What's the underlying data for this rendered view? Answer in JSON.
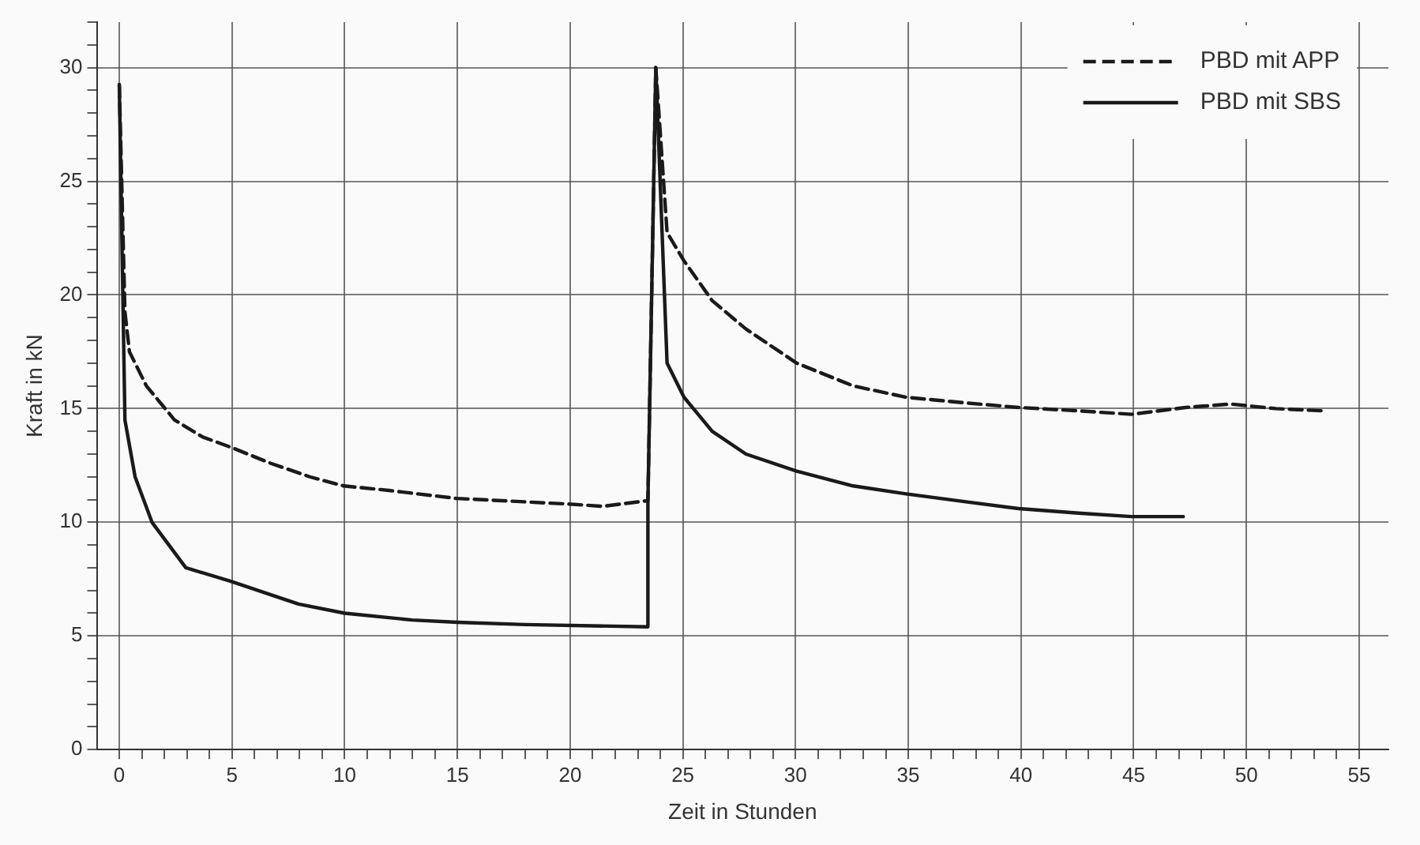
{
  "chart_data": {
    "type": "line",
    "xlabel": "Zeit in Stunden",
    "ylabel": "Kraft in kN",
    "xlim": [
      -1,
      56.3
    ],
    "ylim": [
      0,
      32
    ],
    "xticks": [
      0,
      {
        "value": 1,
        "label": null
      },
      {
        "value": 2,
        "label": null
      },
      {
        "value": 3,
        "label": null
      },
      {
        "value": 4,
        "label": null
      },
      5,
      {
        "value": 6,
        "label": null
      },
      {
        "value": 7,
        "label": null
      },
      {
        "value": 8,
        "label": null
      },
      {
        "value": 9,
        "label": null
      },
      10,
      {
        "value": 11,
        "label": null
      },
      {
        "value": 12,
        "label": null
      },
      {
        "value": 13,
        "label": null
      },
      {
        "value": 14,
        "label": null
      },
      15,
      {
        "value": 16,
        "label": null
      },
      {
        "value": 17,
        "label": null
      },
      {
        "value": 18,
        "label": null
      },
      {
        "value": 19,
        "label": null
      },
      20,
      {
        "value": 21,
        "label": null
      },
      {
        "value": 22,
        "label": null
      },
      {
        "value": 23,
        "label": null
      },
      {
        "value": 24,
        "label": null
      },
      25,
      {
        "value": 26,
        "label": null
      },
      {
        "value": 27,
        "label": null
      },
      {
        "value": 28,
        "label": null
      },
      {
        "value": 29,
        "label": null
      },
      30,
      {
        "value": 31,
        "label": null
      },
      {
        "value": 32,
        "label": null
      },
      {
        "value": 33,
        "label": null
      },
      {
        "value": 34,
        "label": null
      },
      35,
      {
        "value": 36,
        "label": null
      },
      {
        "value": 37,
        "label": null
      },
      {
        "value": 38,
        "label": null
      },
      {
        "value": 39,
        "label": null
      },
      40,
      {
        "value": 41,
        "label": null
      },
      {
        "value": 42,
        "label": null
      },
      {
        "value": 43,
        "label": null
      },
      {
        "value": 44,
        "label": null
      },
      45,
      {
        "value": 46,
        "label": null
      },
      {
        "value": 47,
        "label": null
      },
      {
        "value": 48,
        "label": null
      },
      {
        "value": 49,
        "label": null
      },
      50,
      {
        "value": 51,
        "label": null
      },
      {
        "value": 52,
        "label": null
      },
      {
        "value": 53,
        "label": null
      },
      {
        "value": 54,
        "label": null
      },
      55
    ],
    "yticks": [
      0,
      {
        "value": 1,
        "label": null
      },
      {
        "value": 2,
        "label": null
      },
      {
        "value": 3,
        "label": null
      },
      {
        "value": 4,
        "label": null
      },
      5,
      {
        "value": 6,
        "label": null
      },
      {
        "value": 7,
        "label": null
      },
      {
        "value": 8,
        "label": null
      },
      {
        "value": 9,
        "label": null
      },
      10,
      {
        "value": 11,
        "label": null
      },
      {
        "value": 12,
        "label": null
      },
      {
        "value": 13,
        "label": null
      },
      {
        "value": 14,
        "label": null
      },
      15,
      {
        "value": 16,
        "label": null
      },
      {
        "value": 17,
        "label": null
      },
      {
        "value": 18,
        "label": null
      },
      {
        "value": 19,
        "label": null
      },
      20,
      {
        "value": 21,
        "label": null
      },
      {
        "value": 22,
        "label": null
      },
      {
        "value": 23,
        "label": null
      },
      {
        "value": 24,
        "label": null
      },
      25,
      {
        "value": 26,
        "label": null
      },
      {
        "value": 27,
        "label": null
      },
      {
        "value": 28,
        "label": null
      },
      {
        "value": 29,
        "label": null
      },
      30,
      {
        "value": 31,
        "label": null
      },
      {
        "value": 32,
        "label": null
      }
    ],
    "grid": true,
    "legend": "top right",
    "marker": "none",
    "series": [
      {
        "name": "PBD mit APP",
        "color": "#1a1a1a",
        "line_style": "dashed",
        "x": [
          0,
          0.25,
          0.45,
          1.2,
          2.45,
          3.7,
          4.95,
          6.7,
          8.45,
          9.95,
          11.95,
          14.95,
          17.95,
          19.95,
          21.45,
          23.45,
          23.8,
          24.3,
          25.05,
          26.3,
          27.8,
          30.05,
          32.55,
          34.9,
          37.55,
          39.9,
          42.55,
          44.9,
          47.3,
          49.3,
          51.3,
          53.4
        ],
        "values": [
          29.25,
          19.25,
          17.5,
          16,
          14.5,
          13.75,
          13.3,
          12.6,
          12,
          11.6,
          11.4,
          11.05,
          10.9,
          10.8,
          10.7,
          10.95,
          30,
          22.75,
          21.5,
          19.75,
          18.5,
          17,
          16,
          15.5,
          15.25,
          15.05,
          14.9,
          14.75,
          15.05,
          15.2,
          15,
          14.9
        ]
      },
      {
        "name": "PBD mit SBS",
        "color": "#1a1a1a",
        "line_style": "solid",
        "x": [
          0,
          0.25,
          0.7,
          1.45,
          2.95,
          4.95,
          7.95,
          10,
          13,
          15,
          18,
          23.45,
          23.45,
          23.8,
          24.3,
          25.05,
          26.3,
          27.8,
          30.05,
          32.55,
          34.9,
          37.55,
          39.9,
          42.55,
          44.9,
          47.2
        ],
        "values": [
          29.25,
          14.5,
          12,
          10,
          8,
          7.4,
          6.4,
          6,
          5.7,
          5.6,
          5.5,
          5.4,
          10.9,
          30,
          17,
          15.5,
          14,
          13,
          12.25,
          11.6,
          11.25,
          10.9,
          10.6,
          10.4,
          10.25,
          10.25
        ]
      }
    ]
  }
}
